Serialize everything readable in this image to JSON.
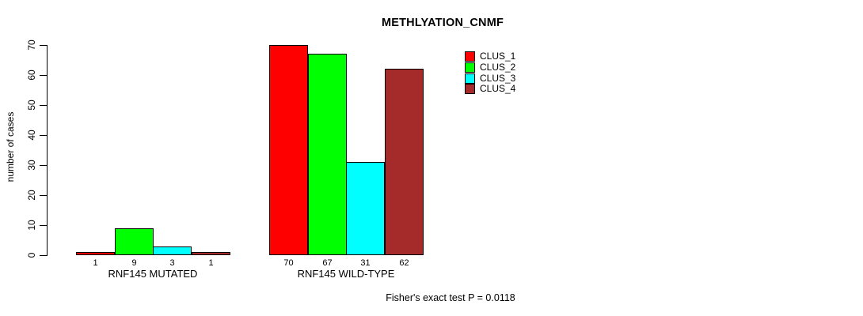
{
  "figure": {
    "title": "METHLYATION_CNMF",
    "subtitle": "Fisher's exact test P = 0.0118"
  },
  "chart_data": {
    "type": "bar",
    "title": "METHLYATION_CNMF",
    "xlabel": "",
    "ylabel": "number of cases",
    "categories": [
      "RNF145 MUTATED",
      "RNF145 WILD-TYPE"
    ],
    "series": [
      {
        "name": "CLUS_1",
        "color": "#FF0000",
        "values": [
          1,
          70
        ]
      },
      {
        "name": "CLUS_2",
        "color": "#00FF00",
        "values": [
          9,
          67
        ]
      },
      {
        "name": "CLUS_3",
        "color": "#00FFFF",
        "values": [
          3,
          31
        ]
      },
      {
        "name": "CLUS_4",
        "color": "#A52A2A",
        "values": [
          1,
          62
        ]
      }
    ],
    "ylim": [
      0,
      70
    ],
    "yticks": [
      0,
      10,
      20,
      30,
      40,
      50,
      60,
      70
    ],
    "grid": false,
    "bar_value_labels_shown": true,
    "legend_position": "top-right-of-plot",
    "annotation": "Fisher's exact test P = 0.0118",
    "axis_color": "#000000",
    "text_color": "#000000",
    "background": "#FFFFFF"
  }
}
